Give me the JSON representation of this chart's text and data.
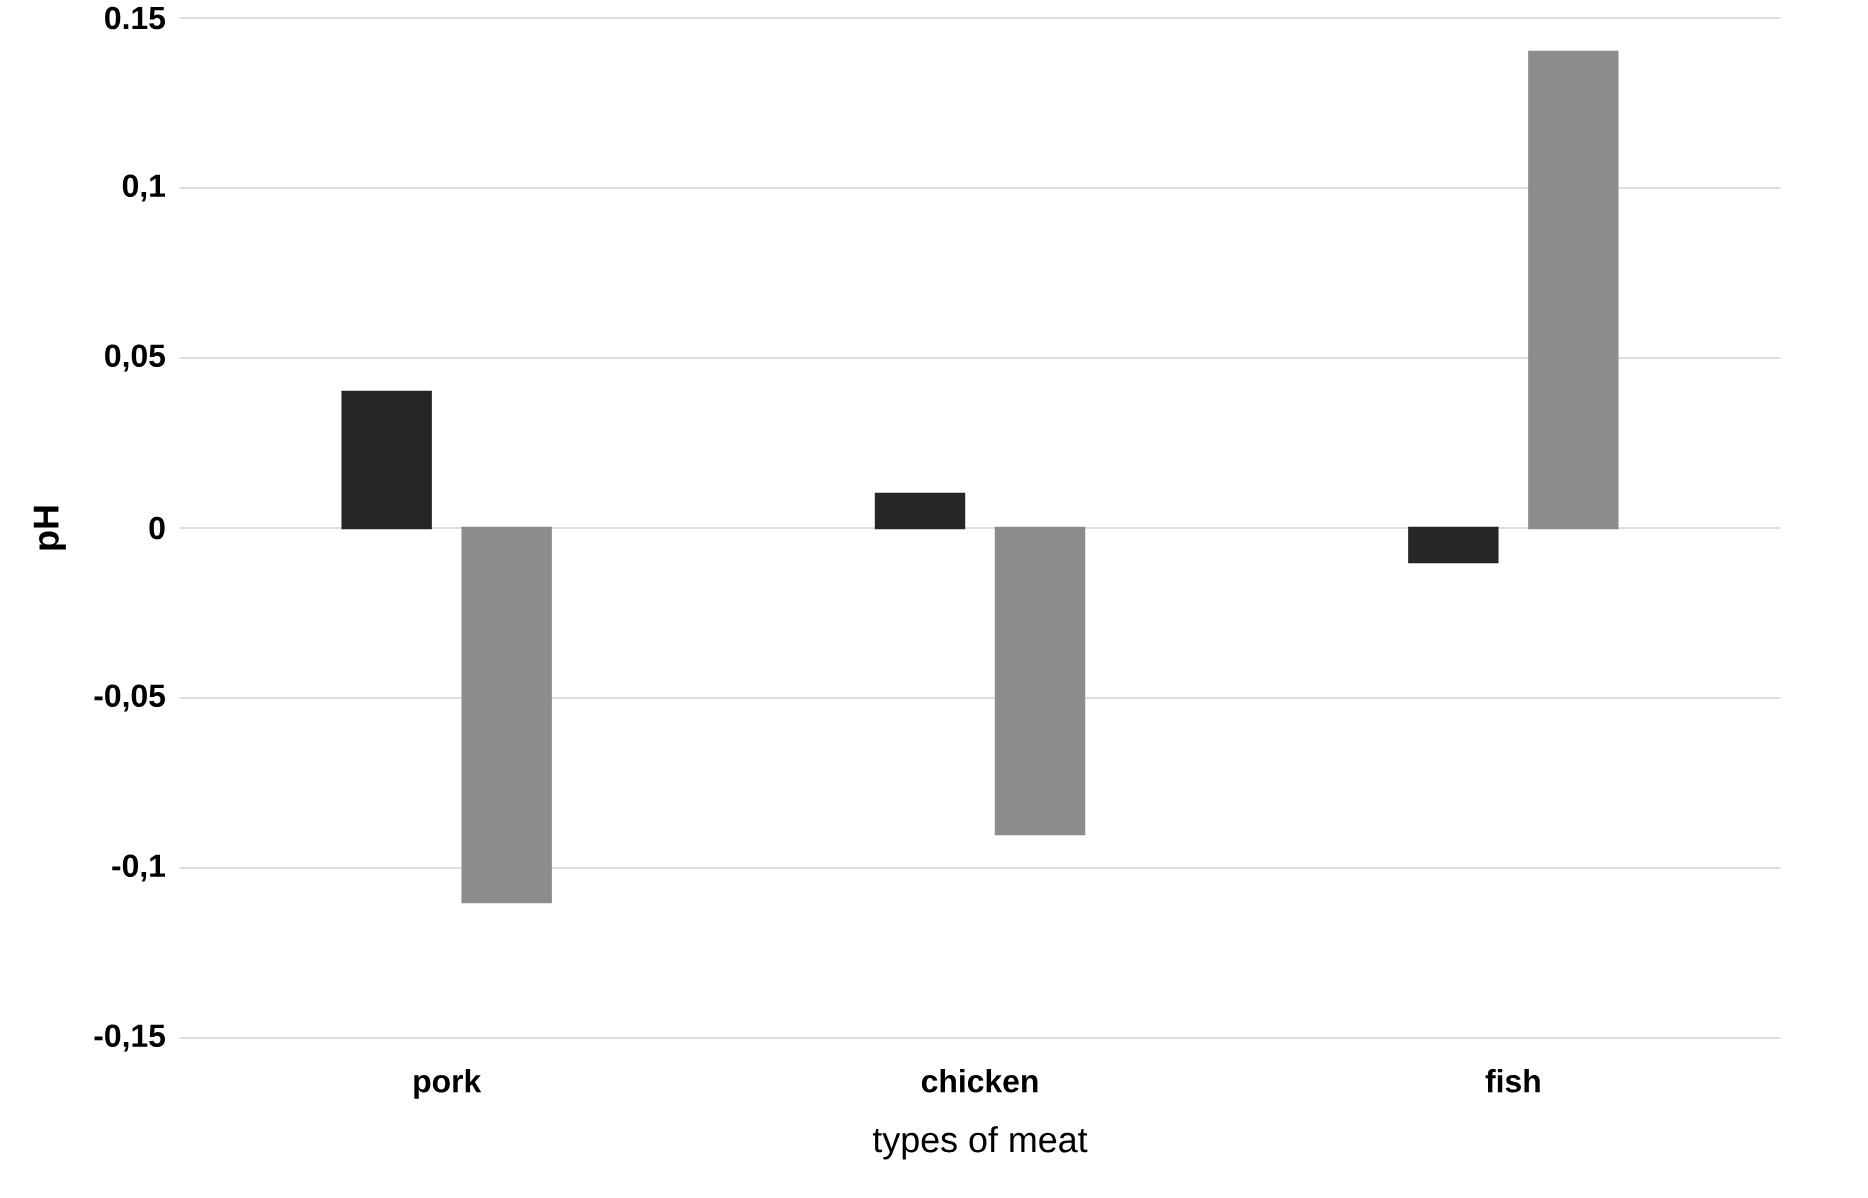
{
  "chart_data": {
    "type": "bar",
    "xlabel": "types of meat",
    "ylabel": "pH",
    "categories": [
      "pork",
      "chicken",
      "fish"
    ],
    "series": [
      {
        "color": "#262626",
        "values": [
          0.04,
          0.01,
          -0.01
        ]
      },
      {
        "color": "#8c8c8c",
        "values": [
          -0.11,
          -0.09,
          0.14
        ]
      }
    ],
    "ylim": [
      -0.15,
      0.15
    ],
    "yticks": [
      {
        "value": -0.15,
        "label": "-0,15"
      },
      {
        "value": -0.1,
        "label": "-0,1"
      },
      {
        "value": -0.05,
        "label": "-0,05"
      },
      0,
      {
        "value": 0.05,
        "label": "0,05"
      },
      {
        "value": 0.1,
        "label": "0,1"
      },
      {
        "value": 0.15,
        "label": "0.15"
      }
    ],
    "grid": "y"
  }
}
